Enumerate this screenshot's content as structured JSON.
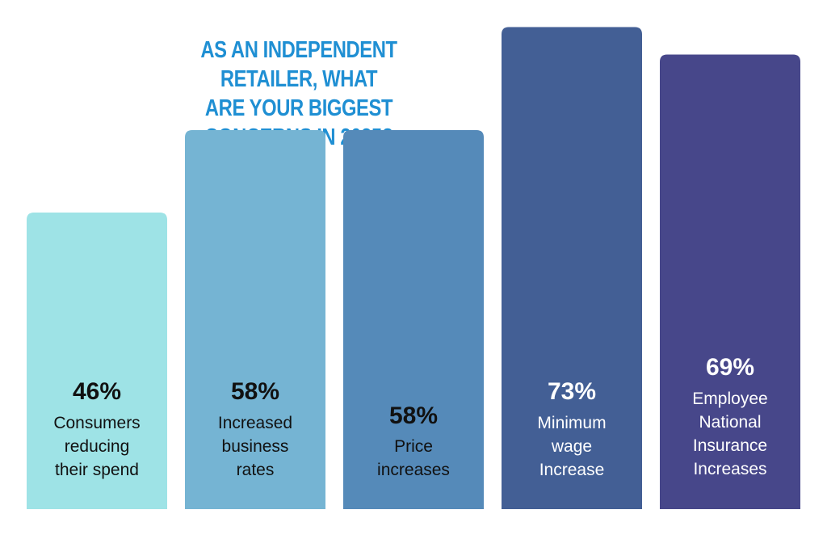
{
  "title": {
    "line1": "AS AN INDEPENDENT RETAILER, WHAT",
    "line2": "ARE YOUR BIGGEST CONCERNS IN 2025?"
  },
  "colors": {
    "title": "#1f8fd3",
    "bars": [
      "#9ee3e6",
      "#75b4d3",
      "#558ab9",
      "#435f95",
      "#47478a"
    ],
    "text_dark": "#111111",
    "text_light": "#ffffff"
  },
  "chart_data": {
    "type": "bar",
    "title": "AS AN INDEPENDENT RETAILER, WHAT ARE YOUR BIGGEST CONCERNS IN 2025?",
    "categories": [
      "Consumers reducing their spend",
      "Increased business rates",
      "Price increases",
      "Minimum wage Increase",
      "Employee National Insurance Increases"
    ],
    "category_lines": [
      [
        "Consumers",
        "reducing",
        "their spend"
      ],
      [
        "Increased",
        "business",
        "rates"
      ],
      [
        "Price",
        "increases"
      ],
      [
        "Minimum",
        "wage",
        "Increase"
      ],
      [
        "Employee",
        "National",
        "Insurance",
        "Increases"
      ]
    ],
    "values": [
      46,
      58,
      58,
      73,
      69
    ],
    "value_labels": [
      "46%",
      "58%",
      "58%",
      "73%",
      "69%"
    ],
    "ylabel": "",
    "xlabel": "",
    "grid": false,
    "legend": "none"
  }
}
